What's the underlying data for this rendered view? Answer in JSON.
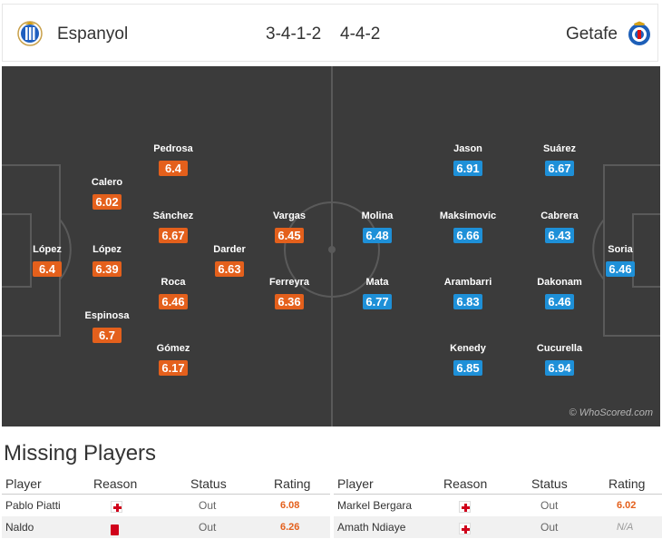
{
  "match": {
    "home_team": "Espanyol",
    "away_team": "Getafe",
    "home_formation": "3-4-1-2",
    "away_formation": "4-4-2",
    "home_color": "#e4601c",
    "away_color": "#1e90d8"
  },
  "pitch": {
    "watermark": "© WhoScored.com",
    "home_players": [
      {
        "name": "López",
        "rating": "6.4"
      },
      {
        "name": "Calero",
        "rating": "6.02"
      },
      {
        "name": "López",
        "rating": "6.39"
      },
      {
        "name": "Espinosa",
        "rating": "6.7"
      },
      {
        "name": "Pedrosa",
        "rating": "6.4"
      },
      {
        "name": "Sánchez",
        "rating": "6.67"
      },
      {
        "name": "Roca",
        "rating": "6.46"
      },
      {
        "name": "Gómez",
        "rating": "6.17"
      },
      {
        "name": "Darder",
        "rating": "6.63"
      },
      {
        "name": "Vargas",
        "rating": "6.45"
      },
      {
        "name": "Ferreyra",
        "rating": "6.36"
      }
    ],
    "away_players": [
      {
        "name": "Molina",
        "rating": "6.48"
      },
      {
        "name": "Mata",
        "rating": "6.77"
      },
      {
        "name": "Jason",
        "rating": "6.91"
      },
      {
        "name": "Maksimovic",
        "rating": "6.66"
      },
      {
        "name": "Arambarri",
        "rating": "6.83"
      },
      {
        "name": "Kenedy",
        "rating": "6.85"
      },
      {
        "name": "Suárez",
        "rating": "6.67"
      },
      {
        "name": "Cabrera",
        "rating": "6.43"
      },
      {
        "name": "Dakonam",
        "rating": "6.46"
      },
      {
        "name": "Cucurella",
        "rating": "6.94"
      },
      {
        "name": "Soria",
        "rating": "6.46"
      }
    ]
  },
  "missing": {
    "title": "Missing Players",
    "headers": {
      "player": "Player",
      "reason": "Reason",
      "status": "Status",
      "rating": "Rating"
    },
    "home": [
      {
        "player": "Pablo Piatti",
        "reason": "injury-icon",
        "status": "Out",
        "rating": "6.08"
      },
      {
        "player": "Naldo",
        "reason": "red-card-icon",
        "status": "Out",
        "rating": "6.26"
      }
    ],
    "away": [
      {
        "player": "Markel Bergara",
        "reason": "injury-icon",
        "status": "Out",
        "rating": "6.02"
      },
      {
        "player": "Amath Ndiaye",
        "reason": "injury-icon",
        "status": "Out",
        "rating": "N/A"
      }
    ]
  }
}
